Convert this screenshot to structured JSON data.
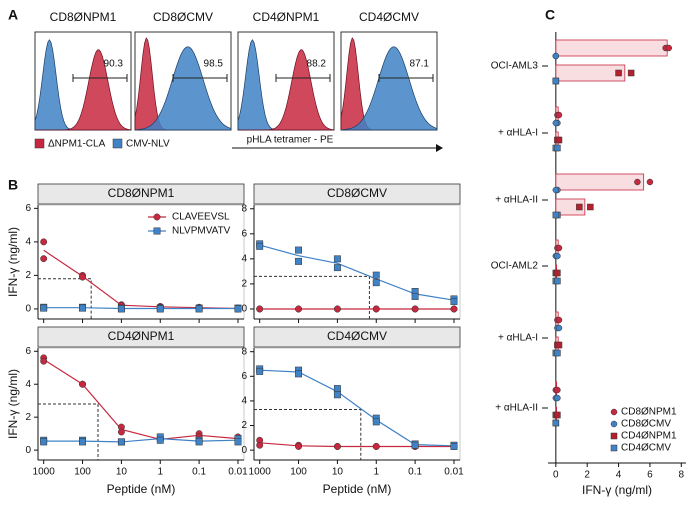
{
  "chart_data": [
    {
      "type": "histogram-panel",
      "panel": "A",
      "plots": [
        {
          "title": "CD8ØNPM1",
          "gate": 90.3
        },
        {
          "title": "CD8ØCMV",
          "gate": 98.5
        },
        {
          "title": "CD4ØNPM1",
          "gate": 88.2
        },
        {
          "title": "CD4ØCMV",
          "gate": 87.1
        }
      ],
      "x_label": "pHLA tetramer - PE",
      "series": [
        {
          "name": "ΔNPM1-CLA",
          "color": "#c8283f"
        },
        {
          "name": "CMV-NLV",
          "color": "#3f82c6"
        }
      ]
    },
    {
      "type": "line",
      "panel": "B",
      "title": "CD8ØNPM1",
      "y_label": "IFN-γ (ng/ml)",
      "x_log": true,
      "x": [
        1000,
        100,
        10,
        1,
        0.1,
        0.01
      ],
      "xlim": [
        1400,
        0.007
      ],
      "xticks": [
        1000,
        100,
        10,
        1,
        0.1,
        0.01
      ],
      "ylim": [
        -0.6,
        6.2
      ],
      "yticks": [
        0,
        2,
        4,
        6
      ],
      "ec50": {
        "x": 60,
        "y": 1.8
      },
      "series": [
        {
          "name": "CLAVEEVSL",
          "color": "#c8283f",
          "marker": "circle",
          "values": [
            [
              4.0,
              3.0
            ],
            [
              2.0,
              1.9
            ],
            [
              0.25,
              0.2
            ],
            [
              0.15,
              0.1
            ],
            [
              0.1,
              0.05
            ],
            [
              0.05,
              0.0
            ]
          ]
        },
        {
          "name": "NLVPMVATV",
          "color": "#3f82c6",
          "marker": "square",
          "values": [
            [
              0.1,
              0.05
            ],
            [
              0.1,
              0.05
            ],
            [
              0.05,
              0.0
            ],
            [
              0.05,
              0.0
            ],
            [
              0.05,
              0.0
            ],
            [
              0.05,
              0.0
            ]
          ]
        }
      ]
    },
    {
      "type": "line",
      "title": "CD8ØCMV",
      "x_log": true,
      "x": [
        1000,
        100,
        10,
        1,
        0.1,
        0.01
      ],
      "xlim": [
        1400,
        0.007
      ],
      "xticks": [
        1000,
        100,
        10,
        1,
        0.1,
        0.01
      ],
      "ylim": [
        -0.8,
        8.3
      ],
      "yticks": [
        0,
        2,
        4,
        6,
        8
      ],
      "ec50": {
        "x": 1.5,
        "y": 2.6
      },
      "series": [
        {
          "color": "#c8283f",
          "marker": "circle",
          "values": [
            [
              0.0,
              0.0
            ],
            [
              0.0,
              0.0
            ],
            [
              0.0,
              0.0
            ],
            [
              0.0,
              0.0
            ],
            [
              0.0,
              0.0
            ],
            [
              0.0,
              0.0
            ]
          ]
        },
        {
          "color": "#3f82c6",
          "marker": "square",
          "values": [
            [
              5.2,
              5.0
            ],
            [
              4.7,
              3.8
            ],
            [
              4.0,
              3.3
            ],
            [
              2.7,
              2.1
            ],
            [
              1.4,
              1.0
            ],
            [
              0.8,
              0.6
            ]
          ]
        }
      ]
    },
    {
      "type": "line",
      "title": "CD4ØNPM1",
      "y_label": "IFN-γ (ng/ml)",
      "x_label": "Peptide (nM)",
      "x_log": true,
      "x": [
        1000,
        100,
        10,
        1,
        0.1,
        0.01
      ],
      "xlim": [
        1400,
        0.007
      ],
      "xticks": [
        1000,
        100,
        10,
        1,
        0.1,
        0.01
      ],
      "ylim": [
        -0.6,
        6.2
      ],
      "yticks": [
        0,
        2,
        4,
        6
      ],
      "ec50": {
        "x": 40,
        "y": 2.8
      },
      "series": [
        {
          "color": "#c8283f",
          "marker": "circle",
          "values": [
            [
              5.6,
              5.4
            ],
            [
              4.0,
              4.0
            ],
            [
              1.4,
              1.1
            ],
            [
              0.7,
              0.6
            ],
            [
              1.0,
              0.8
            ],
            [
              0.8,
              0.6
            ]
          ]
        },
        {
          "color": "#3f82c6",
          "marker": "square",
          "values": [
            [
              0.6,
              0.5
            ],
            [
              0.6,
              0.5
            ],
            [
              0.5,
              0.5
            ],
            [
              0.8,
              0.6
            ],
            [
              0.6,
              0.5
            ],
            [
              0.7,
              0.5
            ]
          ]
        }
      ]
    },
    {
      "type": "line",
      "title": "CD4ØCMV",
      "x_label": "Peptide (nM)",
      "x_log": true,
      "x": [
        1000,
        100,
        10,
        1,
        0.1,
        0.01
      ],
      "xlim": [
        1400,
        0.007
      ],
      "xticks": [
        1000,
        100,
        10,
        1,
        0.1,
        0.01
      ],
      "ylim": [
        -0.8,
        8.3
      ],
      "yticks": [
        0,
        2,
        4,
        6,
        8
      ],
      "ec50": {
        "x": 2.5,
        "y": 3.3
      },
      "series": [
        {
          "color": "#c8283f",
          "marker": "circle",
          "values": [
            [
              0.8,
              0.4
            ],
            [
              0.4,
              0.3
            ],
            [
              0.3,
              0.3
            ],
            [
              0.3,
              0.3
            ],
            [
              0.3,
              0.3
            ],
            [
              0.3,
              0.3
            ]
          ]
        },
        {
          "color": "#3f82c6",
          "marker": "square",
          "values": [
            [
              6.6,
              6.4
            ],
            [
              6.5,
              6.2
            ],
            [
              5.0,
              4.5
            ],
            [
              2.6,
              2.3
            ],
            [
              0.5,
              0.4
            ],
            [
              0.4,
              0.3
            ]
          ]
        }
      ]
    },
    {
      "type": "dot-bar",
      "panel": "C",
      "x_label": "IFN-γ (ng/ml)",
      "categories": [
        "OCI-AML3",
        "+ αHLA-I",
        "+ αHLA-II",
        "OCI-AML2",
        "+ αHLA-I",
        "+ αHLA-II"
      ],
      "xlim": [
        -0.5,
        8.3
      ],
      "xticks": [
        0,
        2,
        4,
        6,
        8
      ],
      "series": [
        {
          "name": "CD8ØNPM1",
          "color": "#c8283f",
          "marker": "circle",
          "values": [
            [
              7.0,
              7.2
            ],
            [
              0.1,
              0.2
            ],
            [
              5.2,
              6.0
            ],
            [
              0.1,
              0.2
            ],
            [
              0.1,
              0.2
            ],
            [
              0.0,
              0.1
            ]
          ]
        },
        {
          "name": "CD8ØCMV",
          "color": "#3f82c6",
          "marker": "circle",
          "values": [
            [
              0.0,
              0.0
            ],
            [
              0.1,
              0.0
            ],
            [
              0.1,
              0.0
            ],
            [
              0.0,
              0.1
            ],
            [
              0.1,
              0.2
            ],
            [
              0.0,
              0.1
            ]
          ]
        },
        {
          "name": "CD4ØNPM1",
          "color": "#b5202f",
          "marker": "square",
          "values": [
            [
              4.0,
              4.8
            ],
            [
              0.1,
              0.2
            ],
            [
              1.5,
              2.2
            ],
            [
              0.0,
              0.1
            ],
            [
              0.1,
              0.2
            ],
            [
              0.0,
              0.1
            ]
          ]
        },
        {
          "name": "CD4ØCMV",
          "color": "#3f82c6",
          "marker": "square",
          "values": [
            [
              0.0,
              0.0
            ],
            [
              0.0,
              0.1
            ],
            [
              0.1,
              0.0
            ],
            [
              0.0,
              0.1
            ],
            [
              0.0,
              0.1
            ],
            [
              0.0,
              0.0
            ]
          ]
        }
      ]
    }
  ]
}
